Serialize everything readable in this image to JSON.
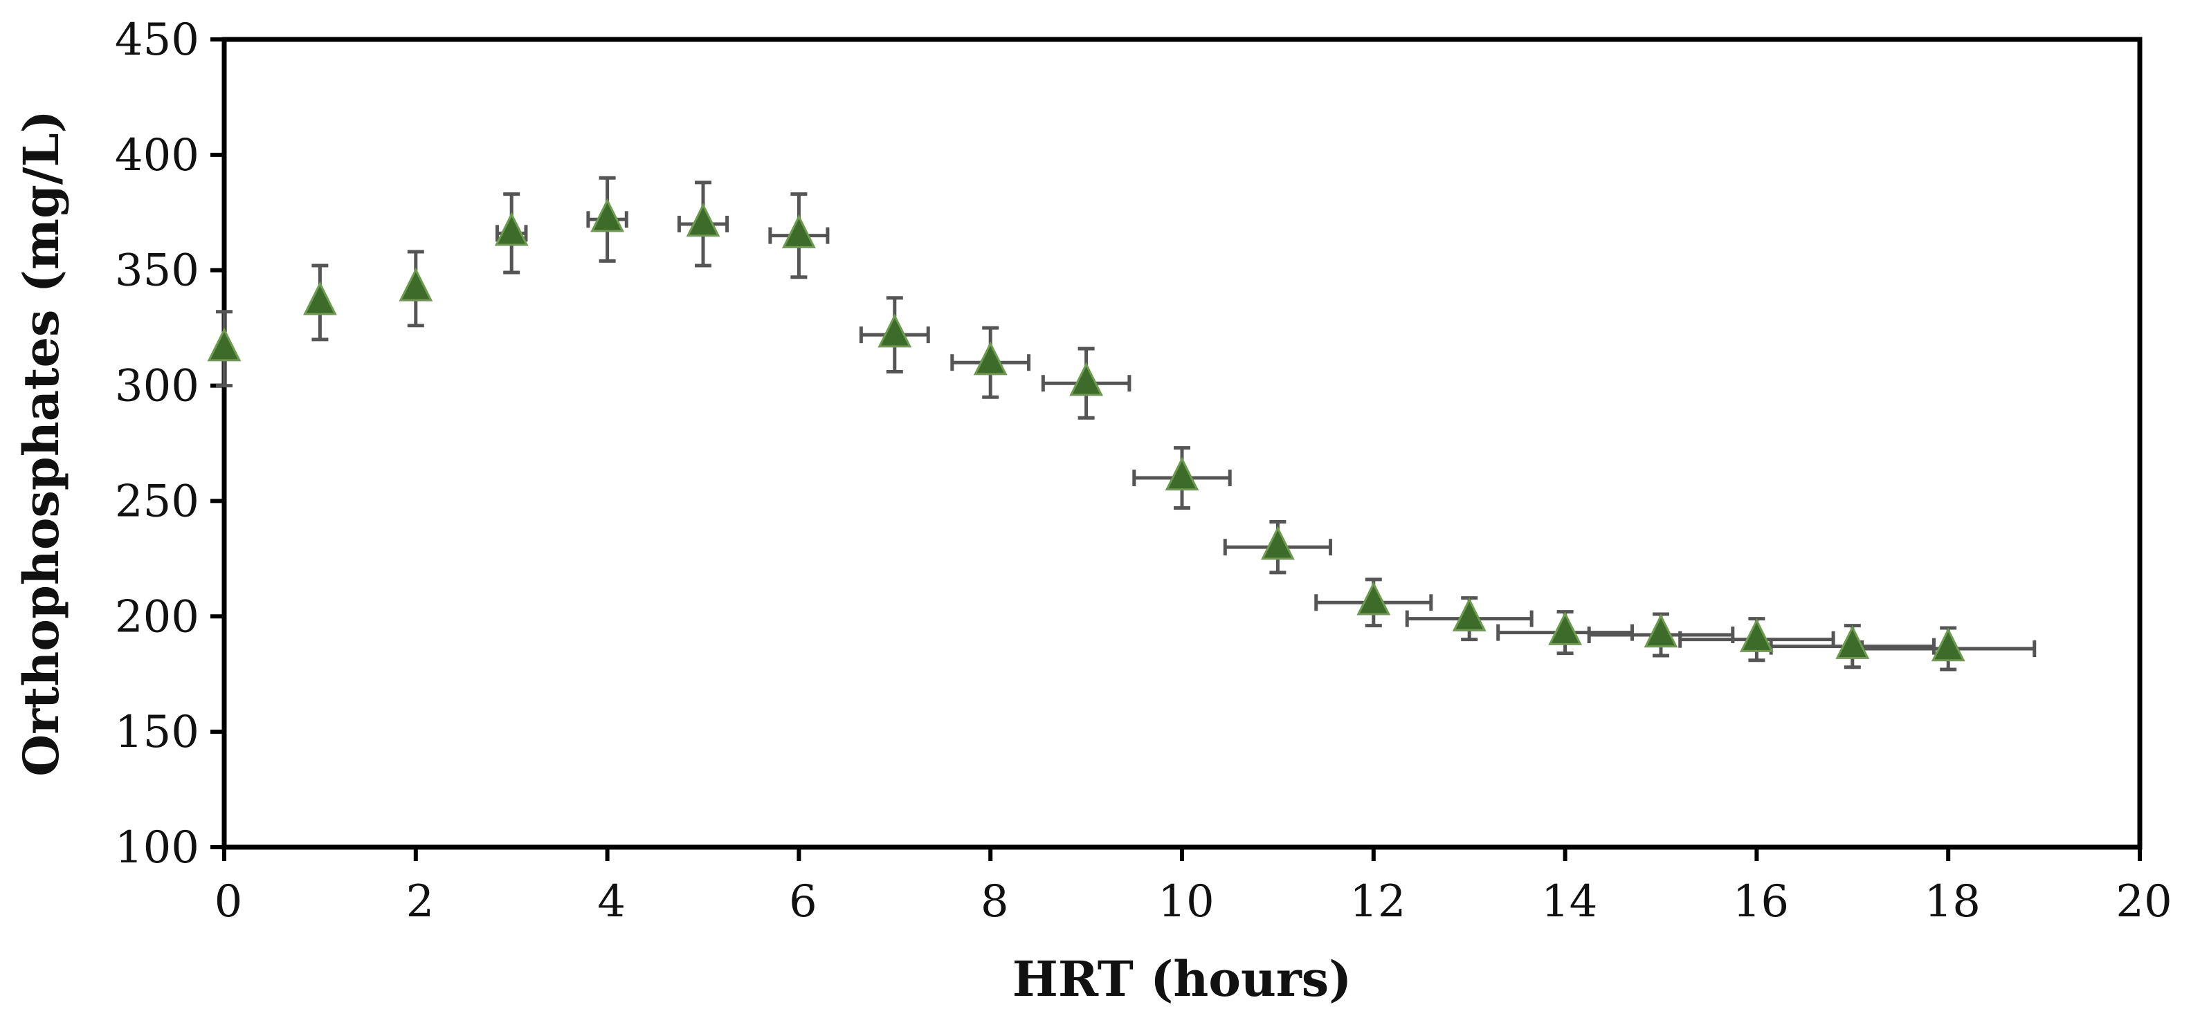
{
  "chart_data": {
    "type": "scatter",
    "title": "",
    "xlabel": "HRT (hours)",
    "ylabel": "Orthophosphates (mg/L)",
    "xlim": [
      0,
      20
    ],
    "ylim": [
      100,
      450
    ],
    "xticks": [
      "0",
      "2",
      "4",
      "6",
      "8",
      "10",
      "12",
      "14",
      "16",
      "18",
      "20"
    ],
    "yticks": [
      "100",
      "150",
      "200",
      "250",
      "300",
      "350",
      "400",
      "450"
    ],
    "grid": false,
    "legend": "none",
    "marker": "triangle",
    "marker_color": "#3d6b2a",
    "errorbar_color": "#555555",
    "series": [
      {
        "x": [
          0,
          1,
          2,
          3,
          4,
          5,
          6,
          7,
          8,
          9,
          10,
          11,
          12,
          13,
          14,
          15,
          16,
          17,
          18
        ],
        "y": [
          316,
          336,
          342,
          366,
          372,
          370,
          365,
          322,
          310,
          301,
          260,
          230,
          206,
          199,
          193,
          192,
          190,
          187,
          186
        ],
        "y_error": [
          16,
          16,
          16,
          17,
          18,
          18,
          18,
          16,
          15,
          15,
          13,
          11,
          10,
          9,
          9,
          9,
          9,
          9,
          9
        ],
        "x_error": [
          0,
          0,
          0,
          0.15,
          0.2,
          0.25,
          0.3,
          0.35,
          0.4,
          0.45,
          0.5,
          0.55,
          0.6,
          0.65,
          0.7,
          0.75,
          0.8,
          0.85,
          0.9
        ]
      }
    ]
  }
}
